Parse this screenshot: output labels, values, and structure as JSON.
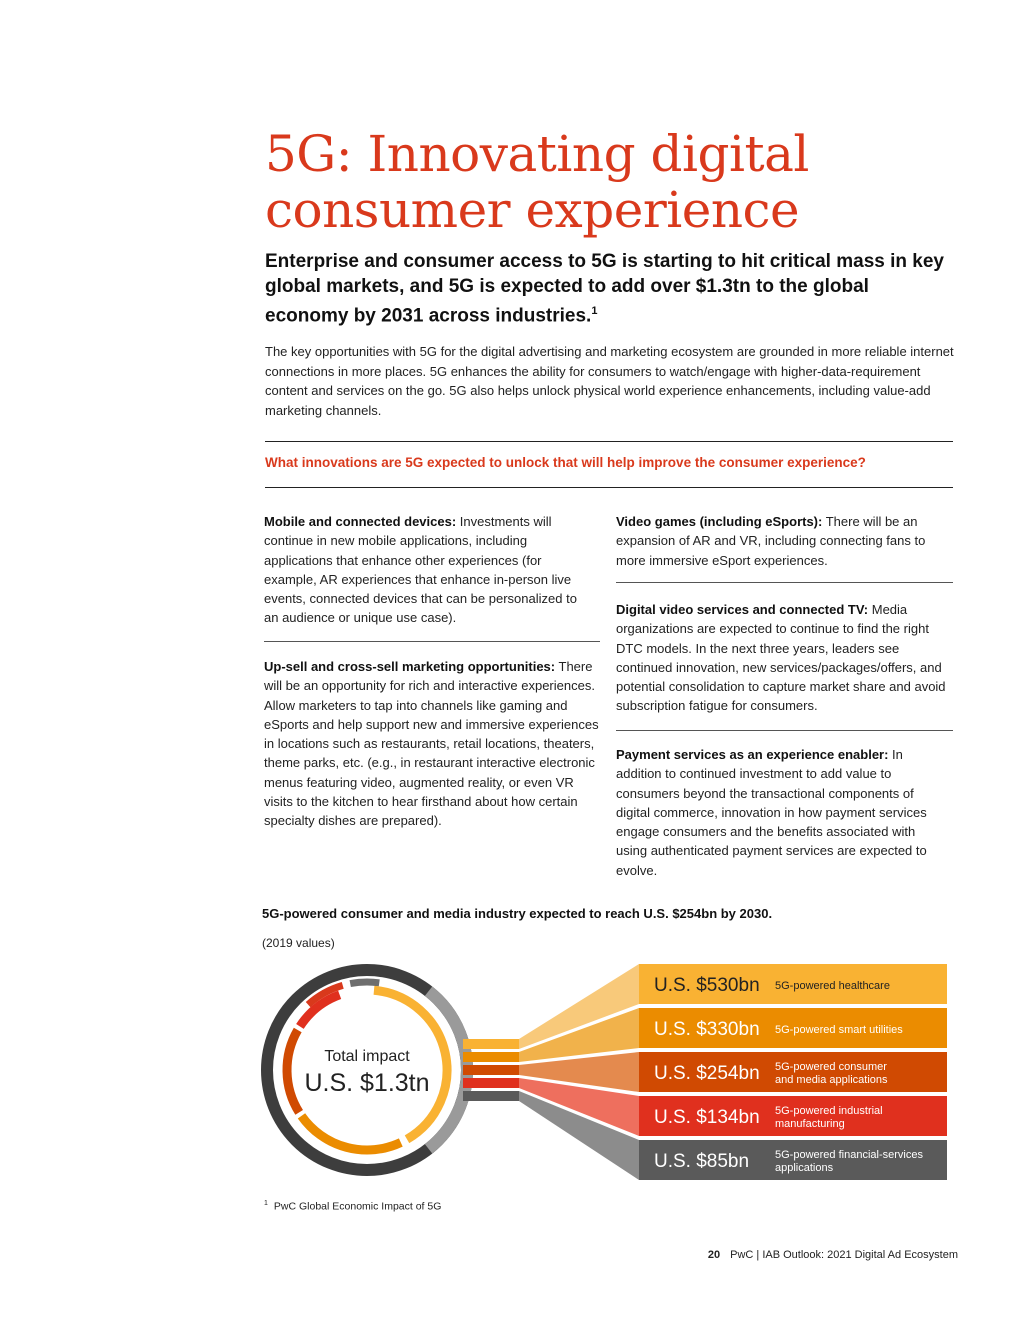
{
  "title_line1": "5G: Innovating digital",
  "title_line2": "consumer experience",
  "subhead": "Enterprise and consumer access to 5G is starting to hit critical mass in key global markets, and 5G is expected to add over $1.3tn to the global economy by 2031 across industries.",
  "subhead_footnote_ref": "1",
  "intro": "The key opportunities with 5G for the digital advertising and marketing ecosystem are grounded in more reliable internet connections in more places. 5G enhances the ability for consumers to watch/engage with higher-data-requirement content and services on the go. 5G also helps unlock physical world experience enhancements, including value-add marketing channels.",
  "question": "What innovations are 5G expected to unlock that will help improve the consumer experience?",
  "innovations": {
    "mobile": {
      "heading": "Mobile and connected devices:",
      "body": " Investments will continue in new mobile applications, including applications that enhance other experiences (for example, AR experiences that enhance in-person live events, connected devices that can be personalized to an audience or unique use case)."
    },
    "upsell": {
      "heading": "Up-sell and cross-sell marketing opportunities:",
      "body": " There will be an opportunity for rich and interactive experiences. Allow marketers to tap into channels like gaming and eSports and help support new and immersive experiences in locations such as restaurants, retail locations, theaters, theme parks, etc. (e.g., in restaurant interactive electronic menus featuring video, augmented reality, or even VR visits to the kitchen to hear firsthand about how certain specialty dishes are prepared)."
    },
    "games": {
      "heading": "Video games (including eSports):",
      "body": " There will be an expansion of AR and VR, including connecting fans to more immersive eSport experiences."
    },
    "video": {
      "heading": "Digital video services and connected TV:",
      "body": " Media organizations are expected to continue to find the right DTC models. In the next three years, leaders see continued innovation, new services/packages/offers, and potential consolidation to capture market share and avoid subscription fatigue for consumers."
    },
    "payment": {
      "heading": "Payment services as an experience enabler:",
      "body": " In addition to continued investment to add value to consumers beyond the transactional components of digital commerce, innovation in how payment services engage consumers and the benefits associated with using authenticated payment services are expected to evolve."
    }
  },
  "chart": {
    "title": "5G-powered consumer and media industry expected to reach U.S. $254bn by 2030.",
    "subtitle": "(2019 values)",
    "center_label": "Total impact",
    "center_value": "U.S. $1.3tn",
    "colors": {
      "ring_outer": "#3d3d3d",
      "outer_gap": "#9a9a9a",
      "outer_arc1": "#d9391c",
      "outer_arc2": "#6e6e6e",
      "healthcare": "#f9b233",
      "utilities": "#eb8c00",
      "consumer": "#d04a02",
      "industrial": "#e0301e",
      "financial": "#5a5a5a"
    }
  },
  "chart_data": {
    "type": "bar",
    "title": "5G-powered consumer and media industry expected to reach U.S. $254bn by 2030.",
    "subtitle": "(2019 values)",
    "total_label": "Total impact",
    "total_value": "U.S. $1.3tn",
    "unit": "U.S. $bn",
    "categories": [
      "5G-powered healthcare",
      "5G-powered smart utilities",
      "5G-powered consumer and media applications",
      "5G-powered industrial manufacturing",
      "5G-powered financial-services applications"
    ],
    "values": [
      530,
      330,
      254,
      134,
      85
    ],
    "value_labels": [
      "U.S. $530bn",
      "U.S. $330bn",
      "U.S. $254bn",
      "U.S. $134bn",
      "U.S. $85bn"
    ],
    "label_lines": [
      [
        "5G-powered healthcare"
      ],
      [
        "5G-powered smart utilities"
      ],
      [
        "5G-powered consumer",
        "and media applications"
      ],
      [
        "5G-powered industrial",
        "manufacturing"
      ],
      [
        "5G-powered financial-services",
        "applications"
      ]
    ],
    "colors": [
      "#f9b233",
      "#eb8c00",
      "#d04a02",
      "#e0301e",
      "#5a5a5a"
    ]
  },
  "footnote_number": "1",
  "footnote": "PwC Global Economic Impact of 5G",
  "footer": {
    "page_number": "20",
    "text": "PwC  |  IAB Outlook: 2021 Digital Ad Ecosystem"
  }
}
